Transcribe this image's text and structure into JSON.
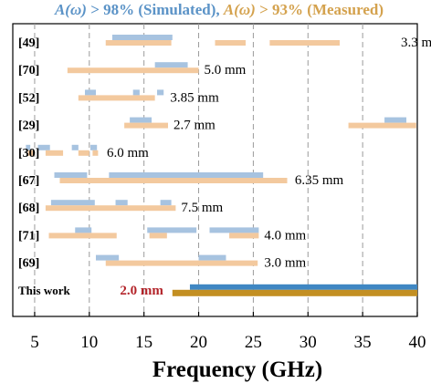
{
  "chart_data": {
    "type": "bar",
    "title_parts": [
      {
        "text": "A(ω)",
        "italic": true,
        "color": "#5b93c7"
      },
      {
        "text": " > 98% (Simulated), ",
        "italic": false,
        "color": "#5b93c7"
      },
      {
        "text": "A(ω)",
        "italic": true,
        "color": "#d4a24e"
      },
      {
        "text": " > 93% (Measured)",
        "italic": false,
        "color": "#d4a24e"
      }
    ],
    "xlabel": "Frequency (GHz)",
    "xlim": [
      3,
      40
    ],
    "xticks": [
      5,
      10,
      15,
      20,
      25,
      30,
      35,
      40
    ],
    "grid": "vertical dashed",
    "colors": {
      "simulated": "#a7c3e0",
      "measured": "#f3c99e",
      "this_work_simulated": "#3f87c3",
      "this_work_measured": "#c38f22",
      "this_work_label": "#b3242a"
    },
    "rows": [
      {
        "ref": "[49]",
        "thickness": "3.3 mm",
        "thickness_at": 38.5,
        "simulated": [
          [
            12.1,
            17.6
          ]
        ],
        "measured": [
          [
            11.5,
            17.5
          ],
          [
            21.5,
            24.3
          ],
          [
            26.5,
            32.9
          ]
        ]
      },
      {
        "ref": "[70]",
        "thickness": "5.0 mm",
        "thickness_at": 20.5,
        "simulated": [
          [
            16.0,
            19.0
          ]
        ],
        "measured": [
          [
            8.0,
            20.0
          ]
        ]
      },
      {
        "ref": "[52]",
        "thickness": "3.85 mm",
        "thickness_at": 17.4,
        "simulated": [
          [
            9.6,
            10.6
          ],
          [
            14.0,
            14.6
          ],
          [
            16.2,
            16.8
          ]
        ],
        "measured": [
          [
            9.0,
            16.0
          ]
        ]
      },
      {
        "ref": "[29]",
        "thickness": "2.7 mm",
        "thickness_at": 17.7,
        "simulated": [
          [
            13.7,
            15.7
          ],
          [
            37.0,
            39.0
          ]
        ],
        "measured": [
          [
            13.2,
            17.2
          ],
          [
            33.7,
            39.9
          ]
        ]
      },
      {
        "ref": "[30]",
        "thickness": "6.0 mm",
        "thickness_at": 11.6,
        "simulated": [
          [
            4.2,
            4.6
          ],
          [
            5.3,
            6.4
          ],
          [
            8.4,
            9.0
          ],
          [
            10.1,
            10.7
          ]
        ],
        "measured": [
          [
            4.4,
            5.0
          ],
          [
            6.0,
            7.6
          ],
          [
            9.0,
            10.0
          ],
          [
            10.3,
            10.8
          ]
        ]
      },
      {
        "ref": "[67]",
        "thickness": "6.35 mm",
        "thickness_at": 28.8,
        "simulated": [
          [
            6.8,
            9.8
          ],
          [
            11.8,
            25.9
          ]
        ],
        "measured": [
          [
            7.3,
            28.1
          ]
        ]
      },
      {
        "ref": "[68]",
        "thickness": "7.5 mm",
        "thickness_at": 18.4,
        "simulated": [
          [
            6.5,
            10.5
          ],
          [
            12.4,
            13.5
          ],
          [
            16.5,
            17.5
          ]
        ],
        "measured": [
          [
            6.0,
            17.9
          ]
        ]
      },
      {
        "ref": "[71]",
        "thickness": "4.0 mm",
        "thickness_at": 26.0,
        "simulated": [
          [
            8.7,
            10.2
          ],
          [
            15.3,
            19.8
          ],
          [
            21.0,
            25.5
          ]
        ],
        "measured": [
          [
            6.3,
            12.5
          ],
          [
            15.5,
            17.1
          ],
          [
            22.8,
            25.5
          ]
        ]
      },
      {
        "ref": "[69]",
        "thickness": "3.0 mm",
        "thickness_at": 26.0,
        "simulated": [
          [
            10.6,
            12.7
          ],
          [
            20.0,
            22.5
          ]
        ],
        "measured": [
          [
            11.5,
            25.4
          ]
        ]
      },
      {
        "ref": "This work",
        "thickness": "2.0 mm",
        "thickness_at": 12.8,
        "this_work": true,
        "simulated": [
          [
            19.2,
            40.0
          ]
        ],
        "measured": [
          [
            17.6,
            40.0
          ]
        ]
      }
    ]
  }
}
